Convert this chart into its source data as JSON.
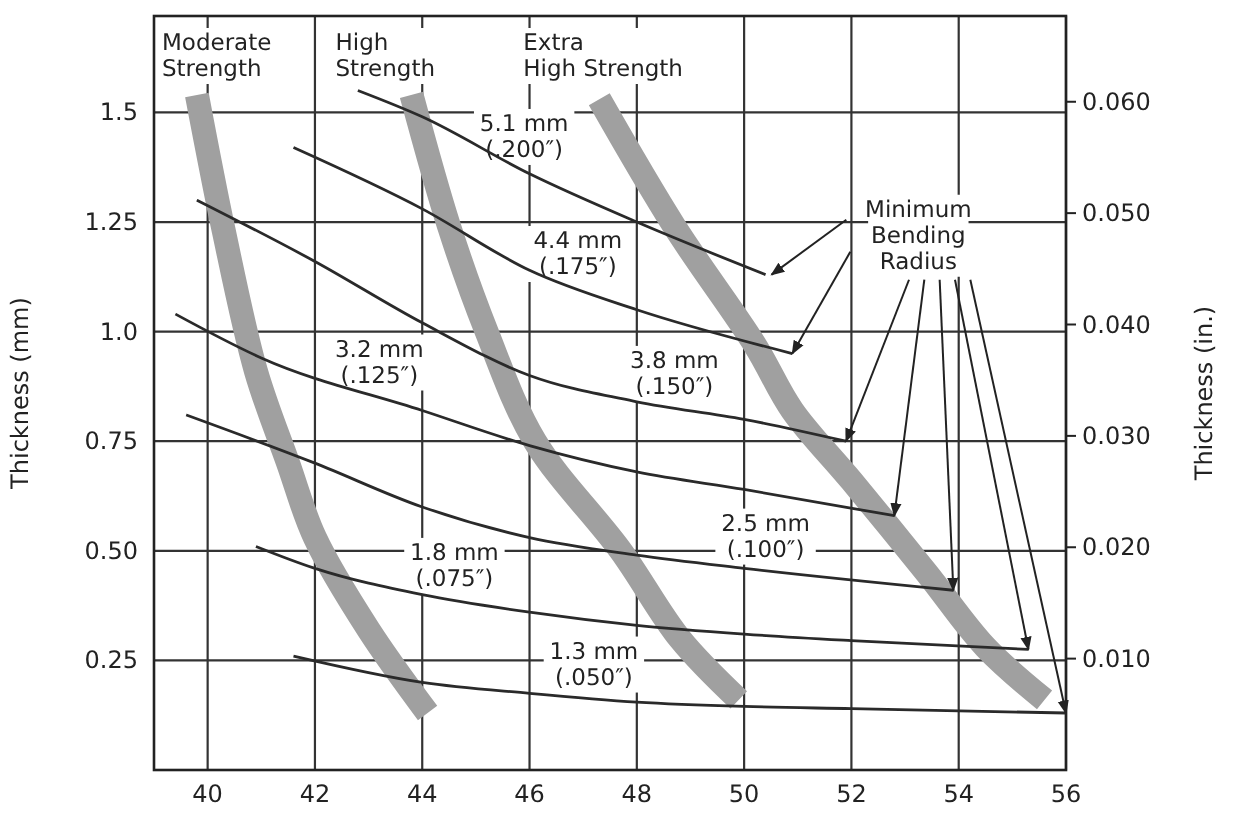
{
  "chart_data": {
    "type": "line",
    "ylabel": "Thickness (mm)",
    "y2label": "Thickness (in.)",
    "xlim": [
      39,
      56
    ],
    "xticks": [
      40,
      42,
      44,
      46,
      48,
      50,
      52,
      54,
      56
    ],
    "ylim": [
      0,
      1.72
    ],
    "yticks": [
      {
        "value": 0.25,
        "label": "0.25"
      },
      {
        "value": 0.5,
        "label": "0.50"
      },
      {
        "value": 0.75,
        "label": "0.75"
      },
      {
        "value": 1,
        "label": "1.0"
      },
      {
        "value": 1.25,
        "label": "1.25"
      },
      {
        "value": 1.5,
        "label": "1.5"
      }
    ],
    "y2lim": [
      0,
      0.0677
    ],
    "y2ticks": [
      {
        "value": 0.01,
        "label": "0.010"
      },
      {
        "value": 0.02,
        "label": "0.020"
      },
      {
        "value": 0.03,
        "label": "0.030"
      },
      {
        "value": 0.04,
        "label": "0.040"
      },
      {
        "value": 0.05,
        "label": "0.050"
      },
      {
        "value": 0.06,
        "label": "0.060"
      }
    ],
    "grid": true,
    "legend": false,
    "series": [
      {
        "name": "Moderate Strength",
        "color": "#a0a0a0",
        "x": [
          39.8,
          40.3,
          40.9,
          41.5,
          42,
          43,
          44.1
        ],
        "values": [
          1.54,
          1.23,
          0.91,
          0.7,
          0.53,
          0.32,
          0.13
        ]
      },
      {
        "name": "High Strength",
        "color": "#a0a0a0",
        "x": [
          43.8,
          44.5,
          45.2,
          46.1,
          47.7,
          48.8,
          49.9
        ],
        "values": [
          1.54,
          1.24,
          1.0,
          0.75,
          0.5,
          0.3,
          0.16
        ]
      },
      {
        "name": "Extra High Strength",
        "color": "#a0a0a0",
        "x": [
          47.3,
          48.7,
          50.2,
          50.9,
          52,
          53.4,
          54.5,
          55.6
        ],
        "values": [
          1.53,
          1.24,
          0.97,
          0.82,
          0.66,
          0.45,
          0.28,
          0.16
        ]
      },
      {
        "name": "5.1 mm (.200″)",
        "color": "#2a2a2a",
        "x": [
          42.8,
          44,
          46,
          48,
          50.4
        ],
        "values": [
          1.55,
          1.49,
          1.36,
          1.25,
          1.13
        ]
      },
      {
        "name": "4.4 mm (.175″)",
        "color": "#2a2a2a",
        "x": [
          41.6,
          44,
          46,
          48,
          50.9
        ],
        "values": [
          1.42,
          1.28,
          1.14,
          1.05,
          0.95
        ]
      },
      {
        "name": "3.8 mm (.150″)",
        "color": "#2a2a2a",
        "x": [
          39.8,
          42,
          44,
          46,
          48,
          50,
          51.9
        ],
        "values": [
          1.3,
          1.16,
          1.02,
          0.9,
          0.84,
          0.8,
          0.75
        ]
      },
      {
        "name": "3.2 mm (.125″)",
        "color": "#2a2a2a",
        "x": [
          39.4,
          41,
          44,
          46,
          48,
          50,
          52.8
        ],
        "values": [
          1.04,
          0.94,
          0.82,
          0.74,
          0.68,
          0.64,
          0.58
        ]
      },
      {
        "name": "2.5 mm (.100″)",
        "color": "#2a2a2a",
        "x": [
          39.6,
          42,
          44,
          46,
          48,
          50,
          53.9
        ],
        "values": [
          0.81,
          0.7,
          0.6,
          0.53,
          0.49,
          0.46,
          0.41
        ]
      },
      {
        "name": "1.8 mm (.075″)",
        "color": "#2a2a2a",
        "x": [
          40.9,
          42,
          44,
          46,
          48,
          50,
          52,
          55.3
        ],
        "values": [
          0.51,
          0.46,
          0.4,
          0.36,
          0.33,
          0.31,
          0.295,
          0.275
        ]
      },
      {
        "name": "1.3 mm (.050″)",
        "color": "#2a2a2a",
        "x": [
          41.6,
          44,
          46,
          48,
          50,
          52,
          56
        ],
        "values": [
          0.26,
          0.2,
          0.175,
          0.155,
          0.145,
          0.14,
          0.13
        ]
      }
    ],
    "annotations": [
      {
        "text": "Minimum Bending Radius",
        "x": 52.8,
        "y": 0.58
      }
    ]
  }
}
